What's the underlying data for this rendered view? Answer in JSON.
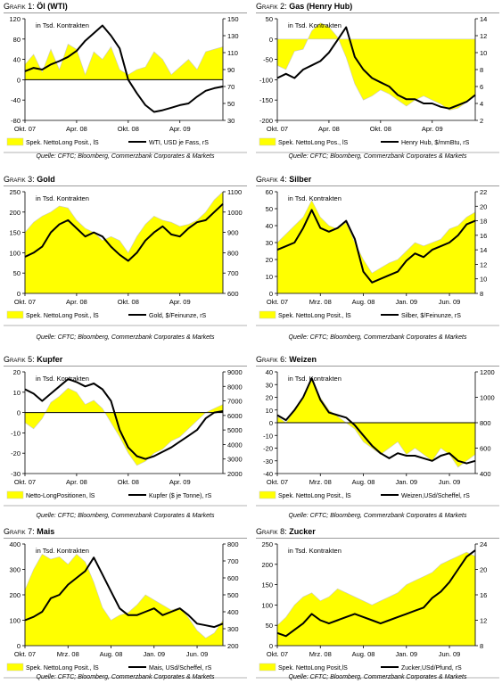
{
  "colors": {
    "area": "#FFFF00",
    "area_edge": "#C8C8C8",
    "line": "#000000",
    "axis": "#000000"
  },
  "source_text": "Quelle: CFTC; Bloomberg, Commerzbank Corporates & Markets",
  "chart_data": [
    {
      "type": "area",
      "label_prefix": "Grafik 1:",
      "title": "Öl (WTI)",
      "inner_label": "in Tsd. Kontrakten",
      "x_ticks": [
        "Okt. 07",
        "Apr. 08",
        "Okt. 08",
        "Apr. 09"
      ],
      "x_tick_idx": [
        0,
        6,
        12,
        18
      ],
      "left_axis": {
        "min": -80,
        "max": 120,
        "ticks": [
          -80,
          -40,
          0,
          40,
          80,
          120
        ]
      },
      "right_axis": {
        "min": 30,
        "max": 150,
        "ticks": [
          30,
          50,
          70,
          90,
          110,
          130,
          150
        ]
      },
      "zero_line": true,
      "series": [
        {
          "name": "Spek. NettoLong Posit., lS",
          "axis": "left",
          "values": [
            30,
            50,
            15,
            60,
            20,
            70,
            60,
            10,
            55,
            40,
            65,
            20,
            10,
            20,
            25,
            55,
            40,
            10,
            25,
            40,
            20,
            55,
            60,
            65
          ]
        },
        {
          "name": "WTI, USD je Fass, rS",
          "axis": "right",
          "values": [
            88,
            92,
            90,
            96,
            100,
            105,
            112,
            124,
            133,
            142,
            130,
            115,
            78,
            62,
            48,
            40,
            42,
            45,
            48,
            50,
            58,
            65,
            68,
            70
          ]
        }
      ]
    },
    {
      "type": "area",
      "label_prefix": "Grafik 2:",
      "title": "Gas (Henry Hub)",
      "inner_label": "in Tsd. Kontrakten",
      "x_ticks": [
        "Okt. 07",
        "Apr. 08",
        "Okt. 08",
        "Apr. 09"
      ],
      "x_tick_idx": [
        0,
        6,
        12,
        18
      ],
      "left_axis": {
        "min": -200,
        "max": 50,
        "ticks": [
          -200,
          -150,
          -100,
          -50,
          0,
          50
        ]
      },
      "right_axis": {
        "min": 2,
        "max": 14,
        "ticks": [
          2,
          4,
          6,
          8,
          10,
          12,
          14
        ]
      },
      "zero_line": false,
      "series": [
        {
          "name": "Spek. NettoLong Pos., lS",
          "axis": "left",
          "values": [
            -65,
            -75,
            -30,
            -25,
            20,
            40,
            30,
            5,
            -45,
            -110,
            -150,
            -140,
            -125,
            -135,
            -150,
            -165,
            -150,
            -140,
            -150,
            -160,
            -175,
            -170,
            -155,
            -140
          ]
        },
        {
          "name": "Henry Hub, $/mmBtu, rS",
          "axis": "right",
          "values": [
            7.0,
            7.5,
            7.0,
            8.0,
            8.5,
            9.0,
            10.0,
            11.5,
            13.0,
            9.5,
            8.0,
            7.0,
            6.5,
            6.0,
            5.0,
            4.5,
            4.5,
            4.0,
            4.0,
            3.6,
            3.4,
            3.8,
            4.2,
            5.0
          ]
        }
      ]
    },
    {
      "type": "area",
      "label_prefix": "Grafik 3:",
      "title": "Gold",
      "inner_label": "in Tsd. Kontrakten",
      "x_ticks": [
        "Okt. 07",
        "Apr. 08",
        "Okt. 08",
        "Apr. 09"
      ],
      "x_tick_idx": [
        0,
        6,
        12,
        18
      ],
      "left_axis": {
        "min": 0,
        "max": 250,
        "ticks": [
          0,
          50,
          100,
          150,
          200,
          250
        ]
      },
      "right_axis": {
        "min": 600,
        "max": 1100,
        "ticks": [
          600,
          700,
          800,
          900,
          1000,
          1100
        ]
      },
      "zero_line": false,
      "series": [
        {
          "name": "Spek. NettoLong Posit., lS",
          "axis": "left",
          "values": [
            150,
            175,
            190,
            200,
            215,
            210,
            180,
            160,
            150,
            130,
            140,
            130,
            100,
            140,
            170,
            190,
            180,
            175,
            165,
            170,
            180,
            200,
            230,
            250
          ]
        },
        {
          "name": "Gold, $/Feinunze, rS",
          "axis": "right",
          "values": [
            780,
            800,
            830,
            900,
            940,
            960,
            920,
            880,
            900,
            880,
            830,
            790,
            760,
            800,
            860,
            900,
            930,
            890,
            880,
            920,
            950,
            960,
            1000,
            1040
          ]
        }
      ]
    },
    {
      "type": "area",
      "label_prefix": "Grafik 4:",
      "title": "Silber",
      "inner_label": "in Tsd. Kontrakten",
      "x_ticks": [
        "Okt. 07",
        "Mrz. 08",
        "Aug. 08",
        "Jan. 09",
        "Jun. 09"
      ],
      "x_tick_idx": [
        0,
        5,
        10,
        15,
        20
      ],
      "left_axis": {
        "min": 0,
        "max": 60,
        "ticks": [
          0,
          10,
          20,
          30,
          40,
          50,
          60
        ]
      },
      "right_axis": {
        "min": 8,
        "max": 22,
        "ticks": [
          8,
          10,
          12,
          14,
          16,
          18,
          20,
          22
        ]
      },
      "zero_line": false,
      "series": [
        {
          "name": "Spek. NettoLong Posit., lS",
          "axis": "left",
          "values": [
            30,
            35,
            40,
            45,
            55,
            45,
            40,
            38,
            42,
            30,
            20,
            12,
            15,
            18,
            20,
            25,
            30,
            28,
            30,
            32,
            38,
            40,
            45,
            48
          ]
        },
        {
          "name": "Silber, $/Feinunze, rS",
          "axis": "right",
          "values": [
            14.0,
            14.5,
            15.0,
            17.0,
            19.5,
            17.0,
            16.5,
            17.0,
            18.0,
            15.5,
            11.0,
            9.5,
            10.0,
            10.5,
            11.0,
            12.5,
            13.5,
            13.0,
            14.0,
            14.5,
            15.0,
            16.0,
            17.5,
            18.0
          ]
        }
      ]
    },
    {
      "type": "area",
      "label_prefix": "Grafik 5:",
      "title": "Kupfer",
      "inner_label": "in Tsd. Kontrakten",
      "x_ticks": [
        "Okt. 07",
        "Apr. 08",
        "Okt. 08",
        "Apr. 09"
      ],
      "x_tick_idx": [
        0,
        6,
        12,
        18
      ],
      "left_axis": {
        "min": -30,
        "max": 20,
        "ticks": [
          -30,
          -20,
          -10,
          0,
          10,
          20
        ]
      },
      "right_axis": {
        "min": 2000,
        "max": 9000,
        "ticks": [
          2000,
          3000,
          4000,
          5000,
          6000,
          7000,
          8000,
          9000
        ]
      },
      "zero_line": true,
      "series": [
        {
          "name": "Netto-LongPositionen, lS",
          "axis": "left",
          "values": [
            -5,
            -8,
            -3,
            5,
            8,
            12,
            10,
            4,
            6,
            2,
            -5,
            -12,
            -20,
            -26,
            -24,
            -20,
            -18,
            -14,
            -12,
            -8,
            -4,
            0,
            2,
            4
          ]
        },
        {
          "name": "Kupfer ($ je Tonne), rS",
          "axis": "right",
          "values": [
            7800,
            7500,
            7000,
            7500,
            8000,
            8500,
            8300,
            8000,
            8200,
            7800,
            7000,
            5000,
            3800,
            3200,
            3000,
            3200,
            3500,
            3800,
            4200,
            4600,
            5000,
            5800,
            6200,
            6300
          ]
        }
      ]
    },
    {
      "type": "area",
      "label_prefix": "Grafik 6:",
      "title": "Weizen",
      "inner_label": "in Tsd. Kontrakten",
      "x_ticks": [
        "Okt. 07",
        "Mrz. 08",
        "Aug. 08",
        "Jan. 09",
        "Jun. 09"
      ],
      "x_tick_idx": [
        0,
        5,
        10,
        15,
        20
      ],
      "left_axis": {
        "min": -40,
        "max": 40,
        "ticks": [
          -40,
          -30,
          -20,
          -10,
          0,
          10,
          20,
          30,
          40
        ]
      },
      "right_axis": {
        "min": 400,
        "max": 1200,
        "ticks": [
          400,
          600,
          800,
          1000,
          1200
        ]
      },
      "zero_line": true,
      "series": [
        {
          "name": "Spek. NettoLong Posit., lS",
          "axis": "left",
          "values": [
            5,
            0,
            10,
            20,
            35,
            20,
            10,
            5,
            0,
            -5,
            -15,
            -20,
            -25,
            -20,
            -15,
            -25,
            -20,
            -25,
            -30,
            -20,
            -25,
            -35,
            -30,
            -25
          ]
        },
        {
          "name": "Weizen,USd/Scheffel, rS",
          "axis": "right",
          "values": [
            860,
            820,
            900,
            1000,
            1150,
            980,
            880,
            860,
            840,
            780,
            700,
            620,
            560,
            520,
            560,
            540,
            540,
            520,
            500,
            540,
            560,
            500,
            480,
            500
          ]
        }
      ]
    },
    {
      "type": "area",
      "label_prefix": "Grafik 7:",
      "title": "Mais",
      "inner_label": "in Tsd. Kontrakten",
      "x_ticks": [
        "Okt. 07",
        "Mrz. 08",
        "Aug. 08",
        "Jan. 09",
        "Jun. 09"
      ],
      "x_tick_idx": [
        0,
        5,
        10,
        15,
        20
      ],
      "left_axis": {
        "min": 0,
        "max": 400,
        "ticks": [
          0,
          100,
          200,
          300,
          400
        ]
      },
      "right_axis": {
        "min": 200,
        "max": 800,
        "ticks": [
          200,
          300,
          400,
          500,
          600,
          700,
          800
        ]
      },
      "zero_line": false,
      "series": [
        {
          "name": "Spek. NettoLong Posit., lS",
          "axis": "left",
          "values": [
            220,
            300,
            360,
            340,
            350,
            320,
            360,
            330,
            250,
            150,
            100,
            120,
            130,
            160,
            200,
            180,
            160,
            140,
            150,
            110,
            60,
            30,
            50,
            100
          ]
        },
        {
          "name": "Mais, USd/Scheffel, rS",
          "axis": "right",
          "values": [
            350,
            370,
            400,
            480,
            500,
            560,
            600,
            640,
            720,
            620,
            520,
            420,
            380,
            380,
            400,
            420,
            380,
            400,
            420,
            380,
            330,
            320,
            310,
            330
          ]
        }
      ]
    },
    {
      "type": "area",
      "label_prefix": "Grafik 8:",
      "title": "Zucker",
      "inner_label": "in Tsd. Kontrakten",
      "x_ticks": [
        "Okt. 07",
        "Mrz. 08",
        "Aug. 08",
        "Jan. 09",
        "Jun. 09"
      ],
      "x_tick_idx": [
        0,
        5,
        10,
        15,
        20
      ],
      "left_axis": {
        "min": 0,
        "max": 250,
        "ticks": [
          0,
          50,
          100,
          150,
          200,
          250
        ]
      },
      "right_axis": {
        "min": 8,
        "max": 24,
        "ticks": [
          8,
          12,
          16,
          20,
          24
        ]
      },
      "zero_line": false,
      "series": [
        {
          "name": "Spek. NettoLong Posit,lS",
          "axis": "left",
          "values": [
            50,
            70,
            100,
            120,
            130,
            110,
            120,
            140,
            130,
            120,
            110,
            100,
            110,
            120,
            130,
            150,
            160,
            170,
            180,
            200,
            210,
            220,
            230,
            220
          ]
        },
        {
          "name": "Zucker,USd/Pfund, rS",
          "axis": "right",
          "values": [
            10.0,
            9.5,
            10.5,
            11.5,
            13.0,
            12.0,
            11.5,
            12.0,
            12.5,
            13.0,
            12.5,
            12.0,
            11.5,
            12.0,
            12.5,
            13.0,
            13.5,
            14.0,
            15.5,
            16.5,
            18.0,
            20.0,
            22.0,
            23.0
          ]
        }
      ]
    }
  ]
}
